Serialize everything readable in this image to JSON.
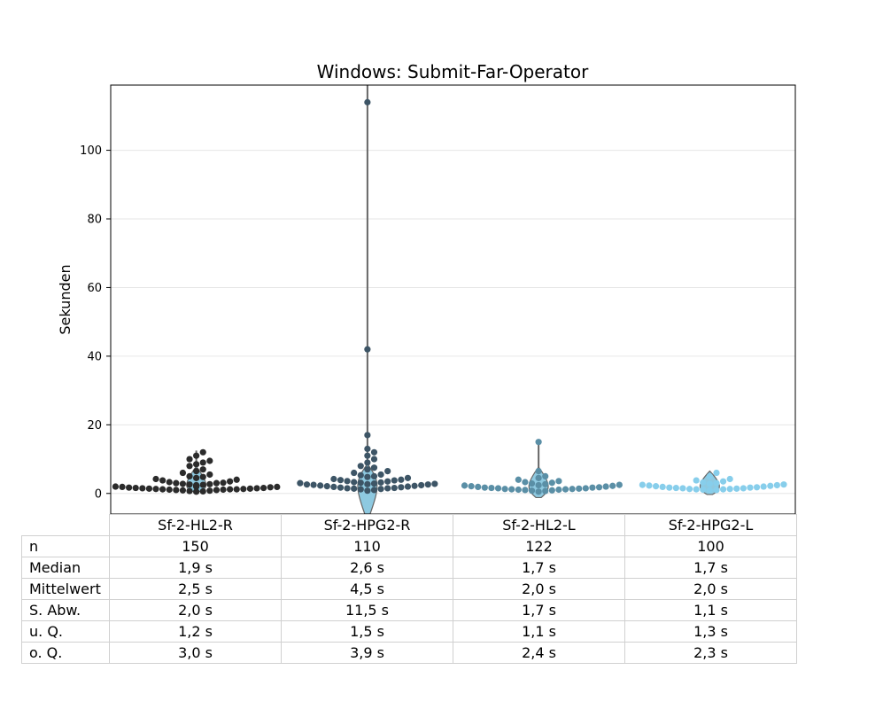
{
  "chart_data": {
    "type": "violin-swarm",
    "title": "Windows: Submit-Far-Operator",
    "xlabel": "",
    "ylabel": "Sekunden",
    "ylim": [
      -6,
      119
    ],
    "yticks": [
      0,
      20,
      40,
      60,
      80,
      100
    ],
    "grid": "horizontal",
    "categories": [
      "Sf-2-HL2-R",
      "Sf-2-HPG2-R",
      "Sf-2-HL2-L",
      "Sf-2-HPG2-L"
    ],
    "colors": [
      "#2b2b2b",
      "#3d5566",
      "#5a8fa6",
      "#87ceeb"
    ],
    "violin_color": "#8ec9e0",
    "series": [
      {
        "category": "Sf-2-HL2-R",
        "min": 0.5,
        "max": 12.5,
        "median": 1.9,
        "values": [
          0.5,
          0.6,
          0.7,
          0.8,
          0.9,
          1.0,
          1.0,
          1.1,
          1.1,
          1.2,
          1.2,
          1.2,
          1.3,
          1.3,
          1.4,
          1.4,
          1.5,
          1.5,
          1.6,
          1.6,
          1.7,
          1.8,
          1.9,
          1.9,
          2.0,
          2.0,
          2.1,
          2.2,
          2.3,
          2.4,
          2.5,
          2.6,
          2.7,
          2.8,
          3.0,
          3.0,
          3.1,
          3.3,
          3.5,
          3.8,
          4.0,
          4.2,
          4.5,
          4.8,
          5.0,
          5.5,
          6.0,
          6.5,
          7.0,
          8.0,
          8.5,
          9.0,
          9.5,
          10.0,
          11.0,
          12.0
        ]
      },
      {
        "category": "Sf-2-HPG2-R",
        "min": -6,
        "max": 119,
        "median": 2.6,
        "values": [
          0.8,
          1.0,
          1.2,
          1.3,
          1.4,
          1.5,
          1.5,
          1.6,
          1.7,
          1.8,
          1.9,
          2.0,
          2.1,
          2.2,
          2.3,
          2.4,
          2.5,
          2.6,
          2.6,
          2.7,
          2.8,
          2.9,
          3.0,
          3.1,
          3.2,
          3.3,
          3.5,
          3.6,
          3.8,
          3.9,
          4.0,
          4.2,
          4.5,
          4.8,
          5.0,
          5.3,
          5.5,
          6.0,
          6.5,
          7.0,
          7.5,
          8.0,
          9.0,
          10.0,
          11.0,
          12.0,
          13.0,
          17.0,
          42.0,
          114.0
        ]
      },
      {
        "category": "Sf-2-HL2-L",
        "min": -1.2,
        "max": 15.5,
        "median": 1.7,
        "values": [
          0.5,
          0.7,
          0.8,
          0.9,
          1.0,
          1.1,
          1.1,
          1.2,
          1.2,
          1.3,
          1.3,
          1.4,
          1.5,
          1.5,
          1.6,
          1.7,
          1.7,
          1.8,
          1.9,
          2.0,
          2.1,
          2.2,
          2.3,
          2.4,
          2.5,
          2.7,
          2.9,
          3.1,
          3.3,
          3.6,
          4.0,
          4.5,
          5.0,
          6.5,
          15.0
        ]
      },
      {
        "category": "Sf-2-HPG2-L",
        "min": -0.3,
        "max": 6.5,
        "median": 1.7,
        "values": [
          0.9,
          1.0,
          1.1,
          1.2,
          1.2,
          1.3,
          1.3,
          1.4,
          1.5,
          1.5,
          1.6,
          1.7,
          1.7,
          1.8,
          1.9,
          2.0,
          2.1,
          2.2,
          2.3,
          2.4,
          2.5,
          2.6,
          2.8,
          3.0,
          3.2,
          3.5,
          3.8,
          4.2,
          5.0,
          6.0
        ]
      }
    ]
  },
  "stats": {
    "rows": [
      {
        "label": "n",
        "values": [
          "150",
          "110",
          "122",
          "100"
        ]
      },
      {
        "label": "Median",
        "values": [
          "1,9 s",
          "2,6 s",
          "1,7 s",
          "1,7 s"
        ]
      },
      {
        "label": "Mittelwert",
        "values": [
          "2,5 s",
          "4,5 s",
          "2,0 s",
          "2,0 s"
        ]
      },
      {
        "label": "S. Abw.",
        "values": [
          "2,0 s",
          "11,5 s",
          "1,7 s",
          "1,1 s"
        ]
      },
      {
        "label": "u. Q.",
        "values": [
          "1,2 s",
          "1,5 s",
          "1,1 s",
          "1,3 s"
        ]
      },
      {
        "label": "o. Q.",
        "values": [
          "3,0 s",
          "3,9 s",
          "2,4 s",
          "2,3 s"
        ]
      }
    ]
  }
}
